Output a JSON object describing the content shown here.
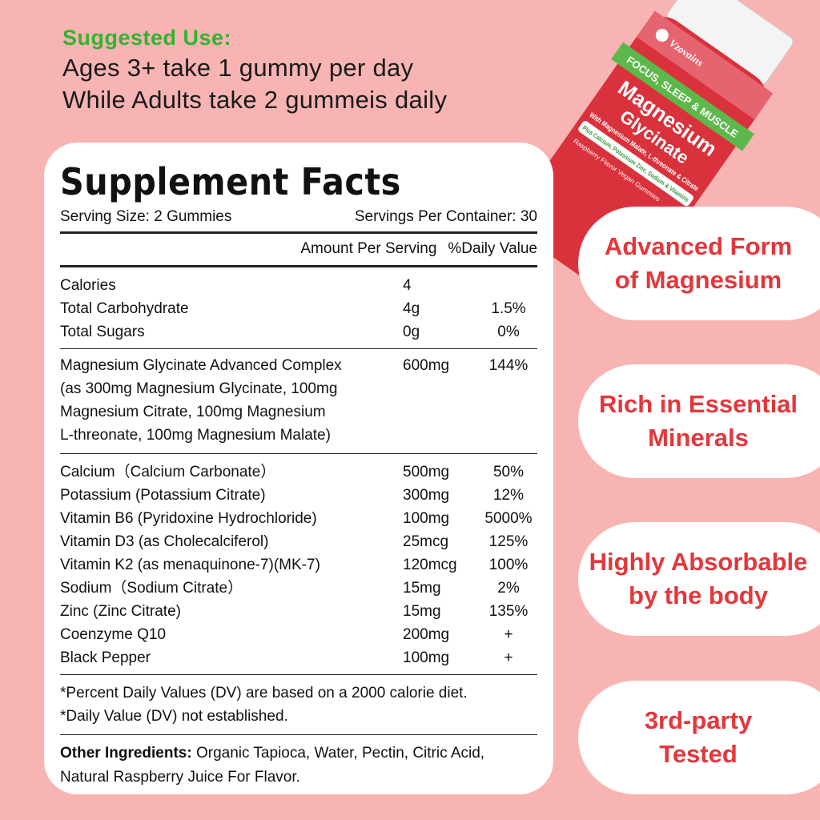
{
  "suggested_use": {
    "heading": "Suggested Use:",
    "lines": [
      "Ages 3+ take 1 gummy per day",
      "While Adults take 2 gummeis daily"
    ]
  },
  "product": {
    "brand": "Vzovains",
    "name": "Magnesium Glycinate",
    "banner": "FOCUS, SLEEP & MUSCLE",
    "sub": "With Magnesium Malate, L-threonate & Citrate",
    "extra": "Plus Calcium, Potassium Zinc, Sodium & Vitamins",
    "flavor": "Raspberry Flavor Vegan Gummies"
  },
  "facts": {
    "title": "Supplement Facts",
    "serving_size": "Serving Size: 2 Gummies",
    "servings_per_container": "Servings Per Container: 30",
    "col_amount": "Amount Per Serving",
    "col_dv": "%Daily Value",
    "group1": [
      {
        "n": "Calories",
        "a": "4",
        "d": ""
      },
      {
        "n": "Total Carbohydrate",
        "a": "4g",
        "d": "1.5%"
      },
      {
        "n": "Total Sugars",
        "a": "0g",
        "d": "0%"
      }
    ],
    "complex": {
      "n": "Magnesium Glycinate Advanced Complex",
      "a": "600mg",
      "d": "144%",
      "lines": [
        "(as 300mg Magnesium Glycinate, 100mg",
        "Magnesium Citrate, 100mg Magnesium",
        "L-threonate, 100mg Magnesium Malate)"
      ]
    },
    "group2": [
      {
        "n": "Calcium（Calcium Carbonate）",
        "a": "500mg",
        "d": "50%"
      },
      {
        "n": "Potassium (Potassium Citrate)",
        "a": "300mg",
        "d": "12%"
      },
      {
        "n": "Vitamin B6 (Pyridoxine Hydrochloride)",
        "a": "100mg",
        "d": "5000%"
      },
      {
        "n": "Vitamin D3 (as Cholecalciferol)",
        "a": "25mcg",
        "d": "125%"
      },
      {
        "n": "Vitamin K2 (as menaquinone-7)(MK-7)",
        "a": "120mcg",
        "d": "100%"
      },
      {
        "n": "Sodium（Sodium Citrate）",
        "a": "15mg",
        "d": "2%"
      },
      {
        "n": "Zinc (Zinc Citrate)",
        "a": "15mg",
        "d": "135%"
      },
      {
        "n": "Coenzyme Q10",
        "a": "200mg",
        "d": "+"
      },
      {
        "n": "Black Pepper",
        "a": "100mg",
        "d": "+"
      }
    ],
    "footnotes": [
      "*Percent Daily Values (DV) are based on a 2000 calorie diet.",
      "*Daily Value (DV) not established."
    ],
    "other_label": "Other Ingredients:",
    "other_text": " Organic Tapioca, Water, Pectin, Citric Acid, Natural Raspberry Juice For Flavor."
  },
  "badges": [
    [
      "Advanced Form",
      "of Magnesium"
    ],
    [
      "Rich in Essential",
      "Minerals"
    ],
    [
      "Highly Absorbable",
      "by the body"
    ],
    [
      "3rd-party",
      "Tested"
    ]
  ],
  "colors": {
    "background": "#f7b4b3",
    "badge_text": "#e2373b",
    "heading_green": "#2fb52e"
  }
}
